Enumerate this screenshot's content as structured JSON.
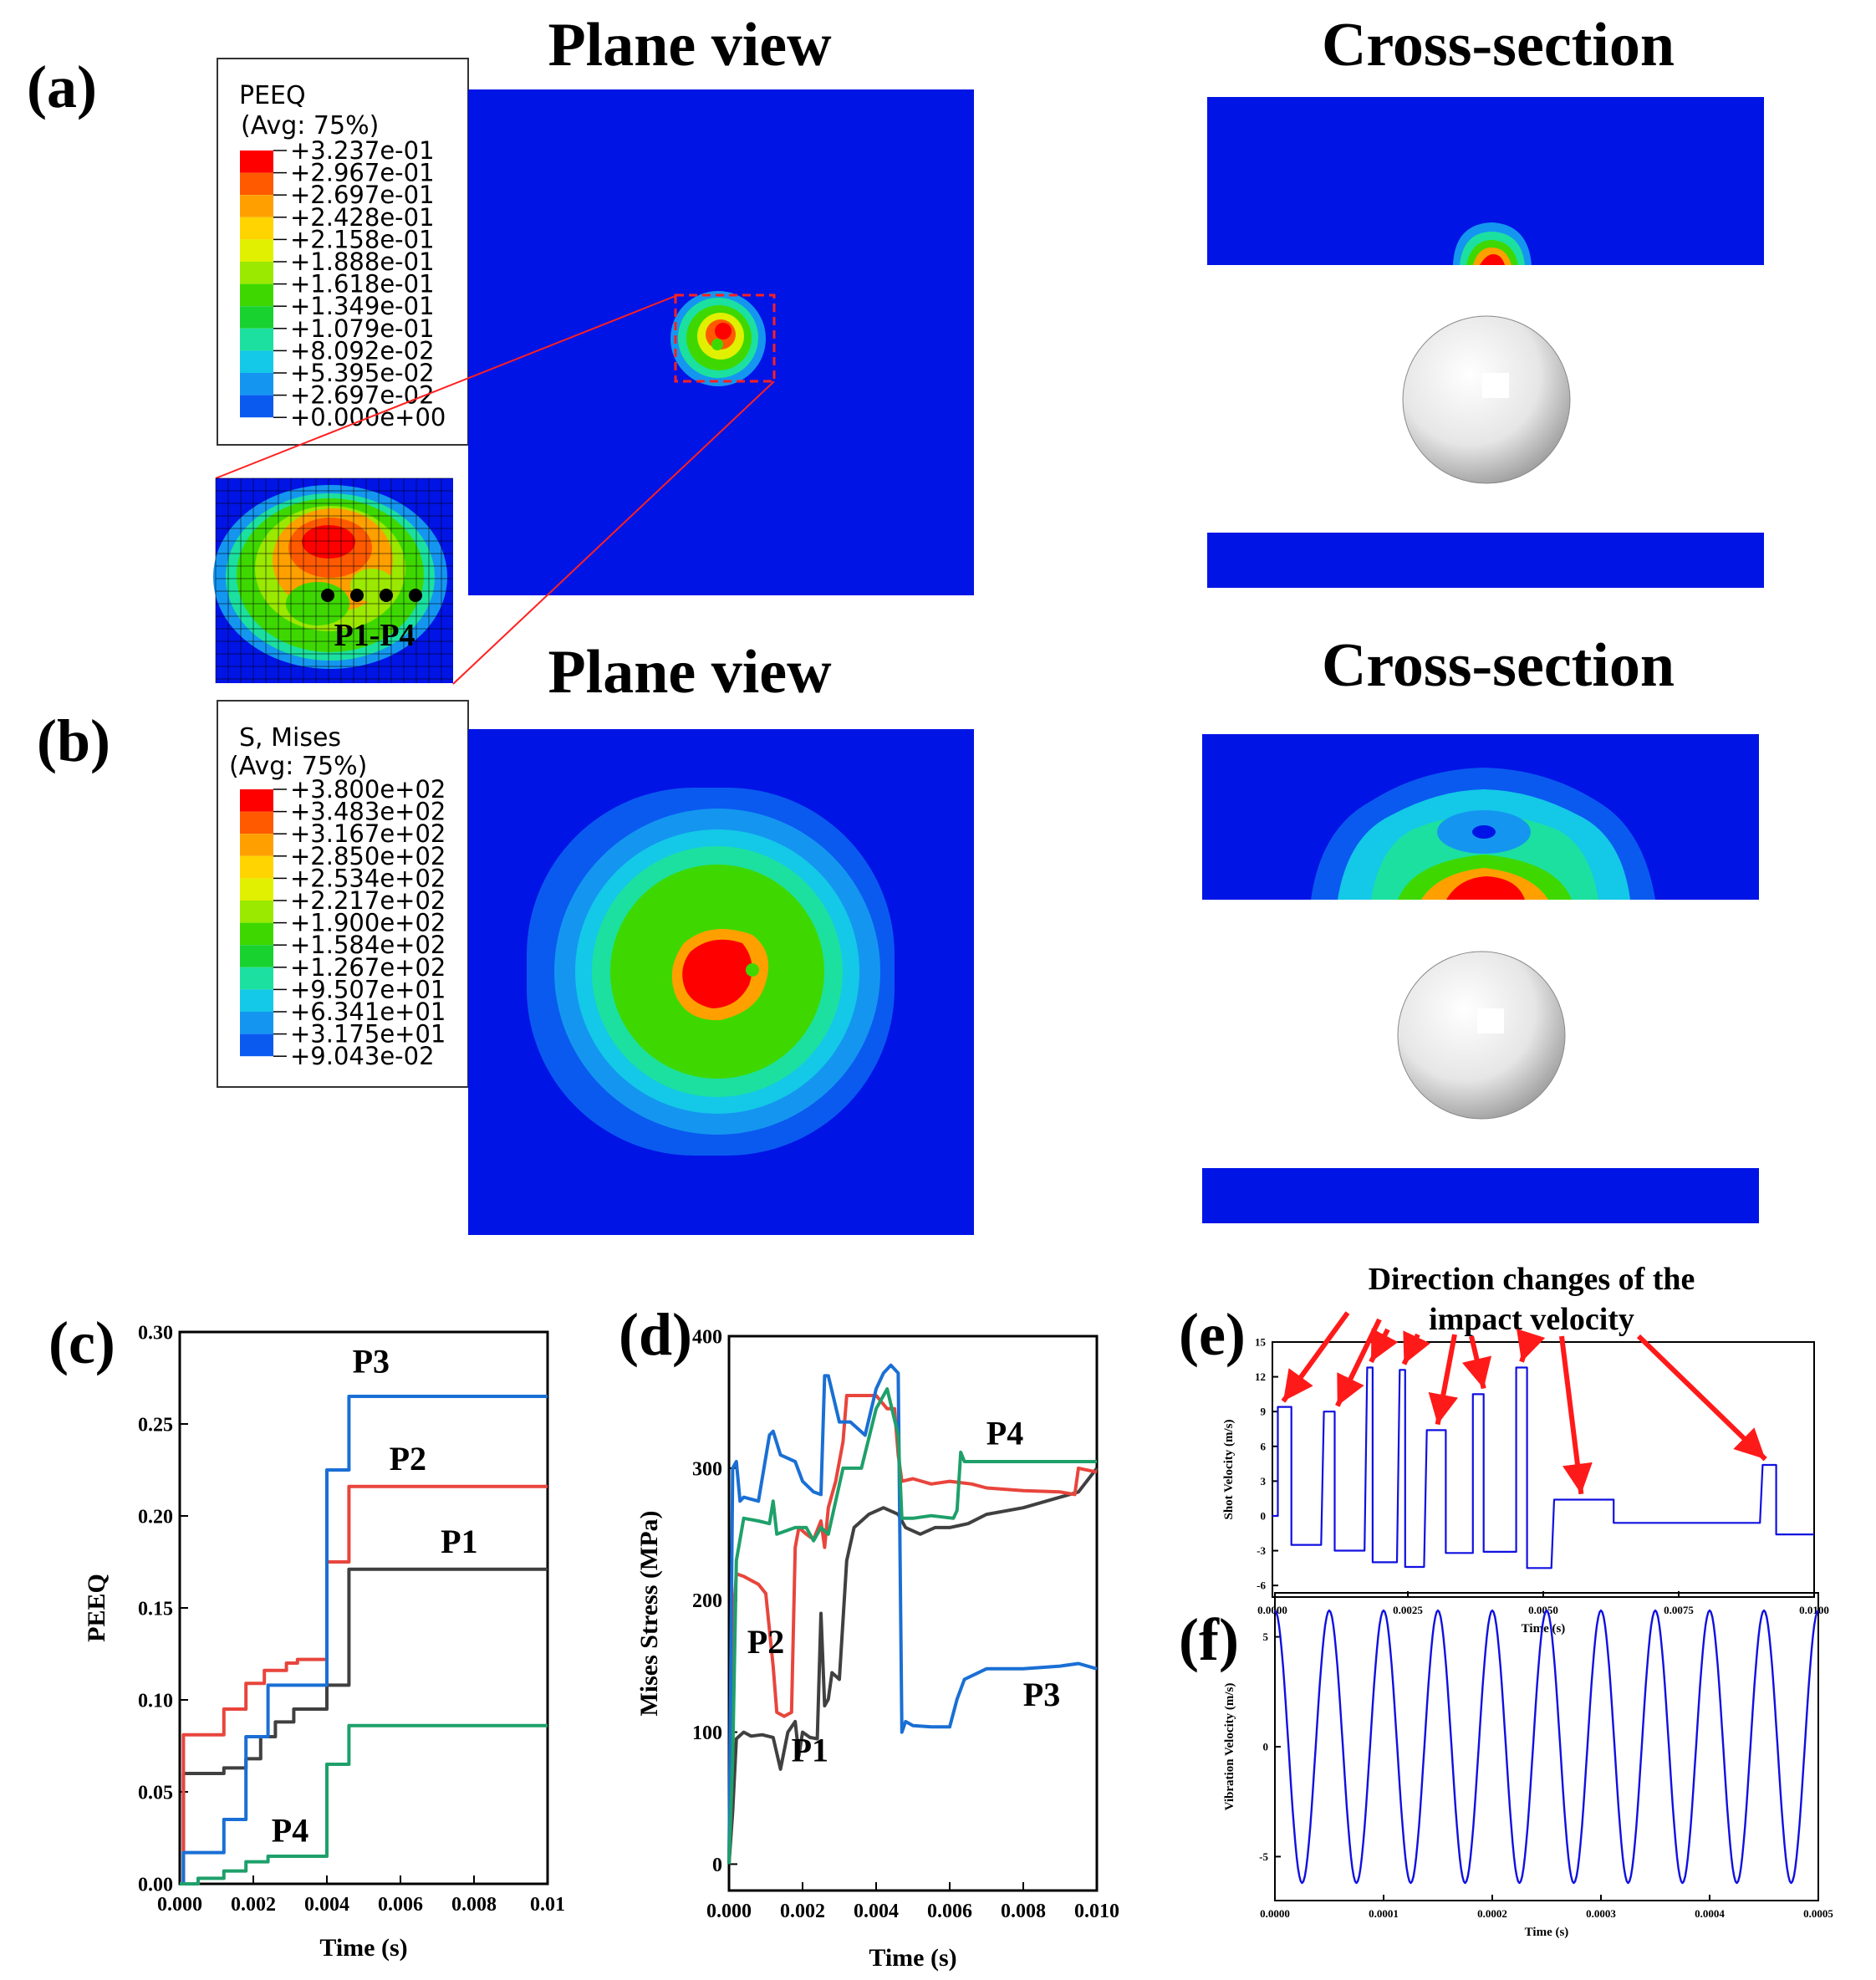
{
  "panels": {
    "a": {
      "label": "(a)",
      "plane_title": "Plane view",
      "section_title": "Cross-section",
      "legend_var": "PEEQ",
      "legend_avg": "(Avg: 75%)",
      "legend_values": [
        "+3.237e-01",
        "+2.967e-01",
        "+2.697e-01",
        "+2.428e-01",
        "+2.158e-01",
        "+1.888e-01",
        "+1.618e-01",
        "+1.349e-01",
        "+1.079e-01",
        "+8.092e-02",
        "+5.395e-02",
        "+2.697e-02",
        "+0.000e+00"
      ],
      "zoom_label": "P1-P4"
    },
    "b": {
      "label": "(b)",
      "plane_title": "Plane view",
      "section_title": "Cross-section",
      "legend_var": "S, Mises",
      "legend_avg": "(Avg: 75%)",
      "legend_values": [
        "+3.800e+02",
        "+3.483e+02",
        "+3.167e+02",
        "+2.850e+02",
        "+2.534e+02",
        "+2.217e+02",
        "+1.900e+02",
        "+1.584e+02",
        "+1.267e+02",
        "+9.507e+01",
        "+6.341e+01",
        "+3.175e+01",
        "+9.043e-02"
      ]
    },
    "c": {
      "label": "(c)"
    },
    "d": {
      "label": "(d)"
    },
    "e": {
      "label": "(e)",
      "annotation_line1": "Direction changes of the",
      "annotation_line2": "impact velocity"
    },
    "f": {
      "label": "(f)"
    }
  },
  "colors": {
    "contour": [
      "#ff0000",
      "#ff5a00",
      "#ffa000",
      "#ffd400",
      "#e0f000",
      "#9be800",
      "#3ed800",
      "#18d230",
      "#1ce0a0",
      "#14c8e8",
      "#1496f0",
      "#0a5af0",
      "#0014e6"
    ],
    "series_p1": "#404040",
    "series_p2": "#e8453c",
    "series_p3": "#1a6fd4",
    "series_p4": "#1ea06a",
    "velocity": "#1010e0",
    "arrow": "#ff1a1a"
  },
  "chart_data": [
    {
      "id": "c",
      "type": "line",
      "title": "",
      "xlabel": "Time (s)",
      "ylabel": "PEEQ",
      "xlim": [
        0,
        0.01
      ],
      "ylim": [
        0,
        0.3
      ],
      "xticks": [
        "0.000",
        "0.002",
        "0.004",
        "0.006",
        "0.008",
        "0.01"
      ],
      "yticks": [
        "0.00",
        "0.05",
        "0.10",
        "0.15",
        "0.20",
        "0.25",
        "0.30"
      ],
      "series": [
        {
          "name": "P1",
          "x": [
            0,
            0.0001,
            0.0001,
            0.0012,
            0.0012,
            0.0018,
            0.0018,
            0.0022,
            0.0022,
            0.0026,
            0.0026,
            0.0031,
            0.0031,
            0.004,
            0.004,
            0.0046,
            0.0046,
            0.01
          ],
          "y": [
            0,
            0,
            0.06,
            0.06,
            0.063,
            0.063,
            0.068,
            0.068,
            0.08,
            0.08,
            0.088,
            0.088,
            0.095,
            0.095,
            0.108,
            0.108,
            0.171,
            0.171
          ]
        },
        {
          "name": "P2",
          "x": [
            0,
            0.0001,
            0.0001,
            0.0012,
            0.0012,
            0.0018,
            0.0018,
            0.0023,
            0.0023,
            0.0029,
            0.0029,
            0.0032,
            0.0032,
            0.004,
            0.004,
            0.0046,
            0.0046,
            0.01
          ],
          "y": [
            0,
            0,
            0.081,
            0.081,
            0.095,
            0.095,
            0.109,
            0.109,
            0.116,
            0.116,
            0.12,
            0.12,
            0.122,
            0.122,
            0.175,
            0.175,
            0.216,
            0.216
          ]
        },
        {
          "name": "P3",
          "x": [
            0,
            0.0001,
            0.0001,
            0.0012,
            0.0012,
            0.0018,
            0.0018,
            0.0024,
            0.0024,
            0.004,
            0.004,
            0.0046,
            0.0046,
            0.01
          ],
          "y": [
            0,
            0,
            0.017,
            0.017,
            0.035,
            0.035,
            0.08,
            0.08,
            0.108,
            0.108,
            0.225,
            0.225,
            0.265,
            0.265
          ]
        },
        {
          "name": "P4",
          "x": [
            0,
            0.0005,
            0.0005,
            0.0012,
            0.0012,
            0.0018,
            0.0018,
            0.0024,
            0.0024,
            0.004,
            0.004,
            0.0046,
            0.0046,
            0.01
          ],
          "y": [
            0,
            0,
            0.003,
            0.003,
            0.007,
            0.007,
            0.012,
            0.012,
            0.015,
            0.015,
            0.065,
            0.065,
            0.086,
            0.086
          ]
        }
      ],
      "labels": [
        {
          "text": "P3",
          "x": 0.0052,
          "y": 0.278
        },
        {
          "text": "P2",
          "x": 0.0062,
          "y": 0.225
        },
        {
          "text": "P1",
          "x": 0.0076,
          "y": 0.18
        },
        {
          "text": "P4",
          "x": 0.003,
          "y": 0.023
        }
      ]
    },
    {
      "id": "d",
      "type": "line",
      "title": "",
      "xlabel": "Time (s)",
      "ylabel": "Mises Stress (MPa)",
      "xlim": [
        0,
        0.01
      ],
      "ylim": [
        -20,
        400
      ],
      "xticks": [
        "0.000",
        "0.002",
        "0.004",
        "0.006",
        "0.008",
        "0.010"
      ],
      "yticks": [
        "0",
        "100",
        "200",
        "300",
        "400"
      ],
      "series": [
        {
          "name": "P1",
          "x": [
            0,
            0.0001,
            0.0002,
            0.0004,
            0.0006,
            0.0009,
            0.0012,
            0.0014,
            0.0016,
            0.0018,
            0.0019,
            0.002,
            0.0022,
            0.0024,
            0.0025,
            0.0026,
            0.0027,
            0.0028,
            0.003,
            0.0032,
            0.0034,
            0.0038,
            0.0042,
            0.0046,
            0.0048,
            0.0052,
            0.0056,
            0.006,
            0.0065,
            0.007,
            0.008,
            0.009,
            0.0095,
            0.01
          ],
          "y": [
            0,
            40,
            95,
            100,
            97,
            98,
            96,
            72,
            100,
            108,
            82,
            100,
            96,
            95,
            190,
            120,
            125,
            145,
            140,
            230,
            255,
            265,
            270,
            265,
            255,
            250,
            255,
            255,
            258,
            265,
            270,
            278,
            282,
            300
          ]
        },
        {
          "name": "P2",
          "x": [
            0,
            0.0001,
            0.0002,
            0.0004,
            0.0008,
            0.001,
            0.0012,
            0.0013,
            0.0015,
            0.0017,
            0.0018,
            0.0019,
            0.0021,
            0.0023,
            0.0025,
            0.0026,
            0.0027,
            0.0029,
            0.0031,
            0.0032,
            0.0036,
            0.004,
            0.0043,
            0.0045,
            0.0046,
            0.0047,
            0.005,
            0.0055,
            0.006,
            0.0066,
            0.007,
            0.008,
            0.009,
            0.0094,
            0.0095,
            0.01
          ],
          "y": [
            0,
            180,
            220,
            218,
            212,
            205,
            150,
            115,
            112,
            115,
            240,
            255,
            250,
            246,
            260,
            240,
            270,
            290,
            320,
            355,
            355,
            355,
            345,
            345,
            310,
            290,
            292,
            288,
            290,
            288,
            285,
            283,
            282,
            280,
            300,
            297
          ]
        },
        {
          "name": "P3",
          "x": [
            0,
            0.0001,
            0.0002,
            0.0003,
            0.0004,
            0.0008,
            0.0011,
            0.0012,
            0.0014,
            0.0018,
            0.002,
            0.0023,
            0.0025,
            0.0026,
            0.0027,
            0.003,
            0.0033,
            0.0037,
            0.004,
            0.0042,
            0.0044,
            0.0046,
            0.0047,
            0.0048,
            0.005,
            0.0055,
            0.006,
            0.0062,
            0.0064,
            0.007,
            0.008,
            0.009,
            0.0095,
            0.01
          ],
          "y": [
            0,
            300,
            305,
            275,
            278,
            275,
            325,
            328,
            310,
            305,
            290,
            282,
            280,
            370,
            370,
            335,
            335,
            325,
            360,
            372,
            378,
            372,
            100,
            108,
            105,
            104,
            104,
            125,
            140,
            148,
            148,
            150,
            152,
            148
          ]
        },
        {
          "name": "P4",
          "x": [
            0,
            0.0001,
            0.0002,
            0.0004,
            0.0008,
            0.0011,
            0.0012,
            0.0013,
            0.0018,
            0.0021,
            0.0023,
            0.0025,
            0.0027,
            0.0031,
            0.0036,
            0.004,
            0.0043,
            0.0046,
            0.0047,
            0.005,
            0.0055,
            0.0061,
            0.0062,
            0.0063,
            0.0064,
            0.007,
            0.008,
            0.009,
            0.0095,
            0.01
          ],
          "y": [
            0,
            80,
            230,
            262,
            260,
            258,
            275,
            250,
            255,
            255,
            245,
            255,
            250,
            300,
            300,
            345,
            360,
            325,
            262,
            262,
            264,
            262,
            268,
            312,
            305,
            305,
            305,
            305,
            305,
            305
          ]
        }
      ],
      "labels": [
        {
          "text": "P4",
          "x": 0.0075,
          "y": 318
        },
        {
          "text": "P3",
          "x": 0.0085,
          "y": 120
        },
        {
          "text": "P2",
          "x": 0.001,
          "y": 160
        },
        {
          "text": "P1",
          "x": 0.0022,
          "y": 78
        }
      ]
    },
    {
      "id": "e",
      "type": "line",
      "title": "",
      "xlabel": "Time (s)",
      "ylabel": "Shot Velocity (m/s)",
      "xlim": [
        0,
        0.01
      ],
      "ylim": [
        -7,
        15
      ],
      "xticks": [
        "0.0000",
        "0.0025",
        "0.0050",
        "0.0075",
        "0.0100"
      ],
      "yticks": [
        "-6",
        "-3",
        "0",
        "3",
        "6",
        "9",
        "12",
        "15"
      ],
      "series": [
        {
          "name": "shot",
          "x": [
            0,
            0.0001,
            0.0001,
            0.0002,
            0.00035,
            0.00035,
            0.0009,
            0.00095,
            0.00105,
            0.00115,
            0.00115,
            0.0017,
            0.00175,
            0.0018,
            0.00185,
            0.00185,
            0.0023,
            0.00235,
            0.0024,
            0.00245,
            0.00245,
            0.0028,
            0.00285,
            0.0029,
            0.00315,
            0.0032,
            0.0032,
            0.0037,
            0.0037,
            0.00375,
            0.0039,
            0.0039,
            0.0045,
            0.0045,
            0.00455,
            0.0047,
            0.0047,
            0.0051,
            0.00515,
            0.0052,
            0.0052,
            0.0063,
            0.0063,
            0.009,
            0.00905,
            0.00925,
            0.0093,
            0.0093,
            0.00985,
            0.01
          ],
          "y": [
            0,
            0,
            9.4,
            9.4,
            9.4,
            -2.5,
            -2.5,
            9,
            9,
            9,
            -3,
            -3,
            12.8,
            12.8,
            12.8,
            -4,
            -4,
            12.6,
            12.6,
            12.6,
            -4.4,
            -4.4,
            7.4,
            7.4,
            7.4,
            7.4,
            -3.2,
            -3.2,
            10.5,
            10.5,
            10.5,
            -3.1,
            -3.1,
            12.8,
            12.8,
            12.8,
            -4.5,
            -4.5,
            -4.5,
            1.4,
            1.4,
            1.4,
            -0.6,
            -0.6,
            4.4,
            4.4,
            4.4,
            -1.6,
            -1.6,
            -1.6
          ]
        }
      ]
    },
    {
      "id": "f",
      "type": "line",
      "title": "",
      "xlabel": "Time (s)",
      "ylabel": "Vibration Velocity (m/s)",
      "xlim": [
        0,
        0.0005
      ],
      "ylim": [
        -7,
        7
      ],
      "xticks": [
        "0.0000",
        "0.0001",
        "0.0002",
        "0.0003",
        "0.0004",
        "0.0005"
      ],
      "yticks": [
        "-5",
        "0",
        "5"
      ],
      "series": [
        {
          "name": "vibration",
          "function": "sine",
          "amplitude": 6.2,
          "frequency": 20000
        }
      ]
    }
  ]
}
